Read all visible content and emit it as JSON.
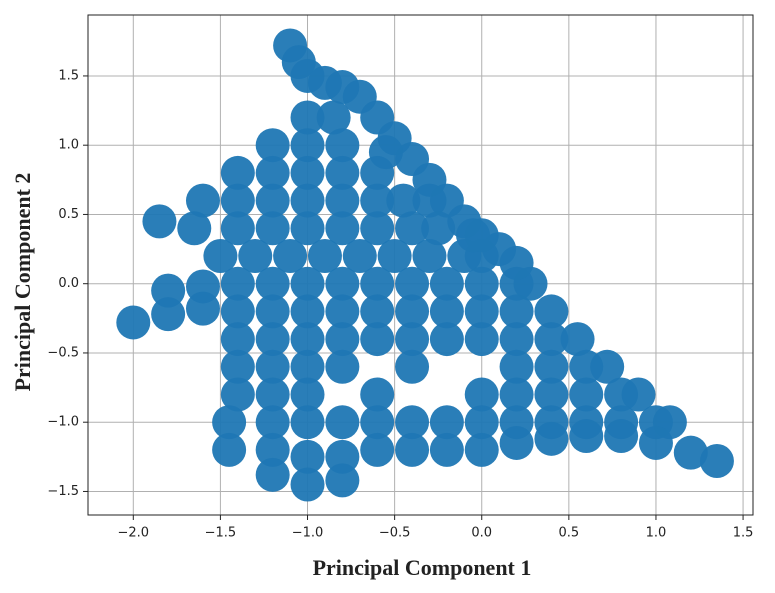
{
  "chart_data": {
    "type": "scatter",
    "xlabel": "Principal Component 1",
    "ylabel": "Principal Component 2",
    "color": "#1f77b4",
    "grid": true,
    "xlim": [
      -2.26,
      1.557
    ],
    "ylim": [
      -1.67,
      1.94
    ],
    "xticks": [
      -2.0,
      -1.5,
      -1.0,
      -0.5,
      0.0,
      0.5,
      1.0,
      1.5
    ],
    "yticks": [
      -1.5,
      -1.0,
      -0.5,
      0.0,
      0.5,
      1.0,
      1.5
    ],
    "x": [
      -1.0,
      -0.85,
      -1.2,
      -1.0,
      -0.8,
      -1.4,
      -1.2,
      -1.0,
      -0.8,
      -0.6,
      -1.6,
      -1.4,
      -1.2,
      -1.0,
      -0.8,
      -0.6,
      -0.45,
      -1.65,
      -1.4,
      -1.2,
      -1.0,
      -0.8,
      -0.6,
      -0.4,
      -0.25,
      -1.5,
      -1.3,
      -1.1,
      -0.9,
      -0.7,
      -0.5,
      -0.3,
      -0.1,
      0.0,
      -1.8,
      -1.6,
      -1.4,
      -1.2,
      -1.0,
      -0.8,
      -0.6,
      -0.4,
      -0.2,
      0.0,
      0.2,
      0.28,
      -2.0,
      -1.8,
      -1.6,
      -1.4,
      -1.2,
      -1.0,
      -0.8,
      -0.6,
      -0.4,
      -0.2,
      0.0,
      0.2,
      0.4,
      -1.4,
      -1.2,
      -1.0,
      -0.8,
      -0.6,
      -0.4,
      -0.2,
      0.0,
      0.2,
      0.4,
      0.55,
      -1.4,
      -1.2,
      -1.0,
      -0.8,
      -0.4,
      0.2,
      0.4,
      0.6,
      0.72,
      -1.4,
      -1.2,
      -1.0,
      -0.6,
      0.0,
      0.2,
      0.4,
      0.6,
      0.8,
      0.9,
      -1.45,
      -1.2,
      -1.0,
      -0.8,
      -0.6,
      -0.4,
      -0.2,
      0.0,
      0.2,
      0.4,
      0.6,
      0.8,
      1.0,
      1.08,
      -1.45,
      -1.2,
      -1.0,
      -0.8,
      -0.6,
      -0.4,
      -0.2,
      0.0,
      0.2,
      0.4,
      0.6,
      0.8,
      1.0,
      1.2,
      1.35,
      -1.2,
      -1.0,
      -0.8,
      -1.1,
      -1.05,
      -1.0,
      -0.9,
      -0.8,
      -0.7,
      -0.6,
      -0.5,
      -0.4,
      -0.3,
      -0.2,
      -0.1,
      0.0,
      0.1,
      0.2,
      -0.55,
      -0.3,
      -0.05,
      -1.85
    ],
    "y": [
      1.2,
      1.2,
      1.0,
      1.0,
      1.0,
      0.8,
      0.8,
      0.8,
      0.8,
      0.8,
      0.6,
      0.6,
      0.6,
      0.6,
      0.6,
      0.6,
      0.6,
      0.4,
      0.4,
      0.4,
      0.4,
      0.4,
      0.4,
      0.4,
      0.4,
      0.2,
      0.2,
      0.2,
      0.2,
      0.2,
      0.2,
      0.2,
      0.2,
      0.2,
      -0.05,
      -0.02,
      0.0,
      0.0,
      0.0,
      0.0,
      0.0,
      0.0,
      0.0,
      0.0,
      0.0,
      0.0,
      -0.28,
      -0.22,
      -0.18,
      -0.2,
      -0.2,
      -0.2,
      -0.2,
      -0.2,
      -0.2,
      -0.2,
      -0.2,
      -0.2,
      -0.2,
      -0.4,
      -0.4,
      -0.4,
      -0.4,
      -0.4,
      -0.4,
      -0.4,
      -0.4,
      -0.4,
      -0.4,
      -0.4,
      -0.6,
      -0.6,
      -0.6,
      -0.6,
      -0.6,
      -0.6,
      -0.6,
      -0.6,
      -0.6,
      -0.8,
      -0.8,
      -0.8,
      -0.8,
      -0.8,
      -0.8,
      -0.8,
      -0.8,
      -0.8,
      -0.8,
      -1.0,
      -1.0,
      -1.0,
      -1.0,
      -1.0,
      -1.0,
      -1.0,
      -1.0,
      -1.0,
      -1.0,
      -1.0,
      -1.0,
      -1.0,
      -1.0,
      -1.2,
      -1.2,
      -1.25,
      -1.25,
      -1.2,
      -1.2,
      -1.2,
      -1.2,
      -1.15,
      -1.12,
      -1.1,
      -1.1,
      -1.15,
      -1.22,
      -1.28,
      -1.38,
      -1.45,
      -1.42,
      1.72,
      1.6,
      1.5,
      1.45,
      1.42,
      1.35,
      1.2,
      1.05,
      0.9,
      0.75,
      0.6,
      0.45,
      0.35,
      0.25,
      0.15,
      0.95,
      0.6,
      0.35,
      0.45
    ]
  }
}
